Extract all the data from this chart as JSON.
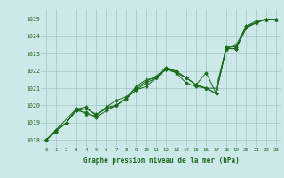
{
  "background_color": "#cce8e8",
  "grid_color": "#a0c8c8",
  "line_color": "#1a6b1a",
  "marker_color": "#1a6b1a",
  "xlabel": "Graphe pression niveau de la mer (hPa)",
  "xlim": [
    -0.5,
    23.5
  ],
  "ylim": [
    1017.6,
    1025.6
  ],
  "yticks": [
    1018,
    1019,
    1020,
    1021,
    1022,
    1023,
    1024,
    1025
  ],
  "xticks": [
    0,
    1,
    2,
    3,
    4,
    5,
    6,
    7,
    8,
    9,
    10,
    11,
    12,
    13,
    14,
    15,
    16,
    17,
    18,
    19,
    20,
    21,
    22,
    23
  ],
  "series1_x": [
    0,
    1,
    2,
    3,
    4,
    5,
    6,
    7,
    8,
    9,
    10,
    11,
    12,
    13,
    14,
    15,
    16,
    17,
    18,
    19,
    20,
    21,
    22,
    23
  ],
  "series1_y": [
    1018.0,
    1018.5,
    1019.0,
    1019.7,
    1019.8,
    1019.5,
    1019.8,
    1020.0,
    1020.4,
    1020.9,
    1021.1,
    1021.6,
    1022.1,
    1022.0,
    1021.6,
    1021.2,
    1021.0,
    1020.7,
    1023.3,
    1023.3,
    1024.5,
    1024.8,
    1025.0,
    1025.0
  ],
  "series2_x": [
    0,
    1,
    2,
    3,
    4,
    5,
    6,
    7,
    8,
    9,
    10,
    11,
    12,
    13,
    14,
    15,
    16,
    17,
    18,
    19,
    20,
    21,
    22,
    23
  ],
  "series2_y": [
    1018.0,
    1018.5,
    1019.0,
    1019.7,
    1019.6,
    1019.3,
    1019.7,
    1020.0,
    1020.4,
    1020.9,
    1021.3,
    1021.6,
    1022.1,
    1021.9,
    1021.3,
    1021.1,
    1021.0,
    1020.7,
    1023.3,
    1023.3,
    1024.5,
    1024.8,
    1025.0,
    1025.0
  ],
  "series3_x": [
    0,
    3,
    4,
    5,
    6,
    7,
    8,
    9,
    10,
    11,
    12,
    13,
    14,
    15,
    16,
    17,
    18,
    19,
    20,
    21,
    22,
    23
  ],
  "series3_y": [
    1018.0,
    1019.8,
    1019.5,
    1019.4,
    1019.9,
    1020.0,
    1020.4,
    1021.1,
    1021.5,
    1021.6,
    1022.2,
    1021.9,
    1021.6,
    1021.2,
    1021.0,
    1021.0,
    1023.3,
    1023.5,
    1024.6,
    1024.8,
    1025.0,
    1025.0
  ],
  "series4_x": [
    0,
    1,
    2,
    3,
    4,
    5,
    6,
    7,
    8,
    9,
    10,
    11,
    12,
    13,
    14,
    15,
    16,
    17,
    18,
    19,
    20,
    21,
    22,
    23
  ],
  "series4_y": [
    1018.0,
    1018.6,
    1019.0,
    1019.8,
    1019.9,
    1019.4,
    1019.9,
    1020.3,
    1020.5,
    1021.0,
    1021.4,
    1021.7,
    1022.2,
    1022.0,
    1021.6,
    1021.2,
    1021.9,
    1020.7,
    1023.4,
    1023.4,
    1024.6,
    1024.9,
    1025.0,
    1025.0
  ]
}
